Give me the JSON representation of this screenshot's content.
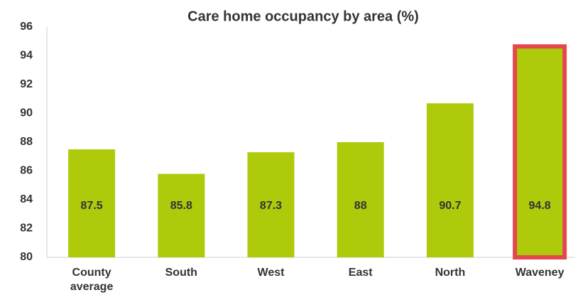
{
  "chart_data": {
    "type": "bar",
    "title": "Care home occupancy by area (%)",
    "categories": [
      "County average",
      "South",
      "West",
      "East",
      "North",
      "Waveney"
    ],
    "values": [
      87.5,
      85.8,
      87.3,
      88,
      90.7,
      94.8
    ],
    "color": "#afca0b",
    "highlight": "Waveney",
    "highlight_color": "#e5474f",
    "ylim": [
      80,
      96
    ],
    "yticks": [
      80,
      82,
      84,
      86,
      88,
      90,
      92,
      94,
      96
    ],
    "grid": false
  }
}
